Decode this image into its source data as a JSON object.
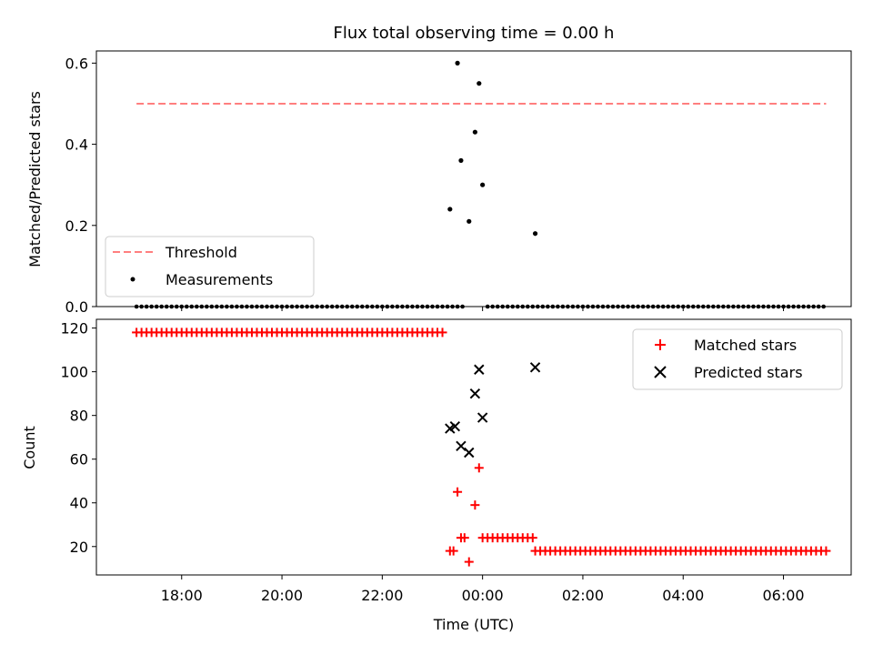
{
  "chart_data": [
    {
      "type": "scatter",
      "title": "Flux total observing time = 0.00 h",
      "xlabel": "",
      "ylabel": "Matched/Predicted stars",
      "ylim": [
        0,
        0.63
      ],
      "yticks": [
        0.0,
        0.2,
        0.4,
        0.6
      ],
      "ytick_labels": [
        "0.0",
        "0.2",
        "0.4",
        "0.6"
      ],
      "x_unit": "hours since 00:00 UTC",
      "xlim": [
        -7.7,
        7.35
      ],
      "threshold": {
        "name": "Threshold",
        "value": 0.5,
        "x_range": [
          -6.9,
          6.85
        ],
        "color": "#ff7f7f"
      },
      "legend": {
        "position": "lower-left",
        "entries": [
          "Threshold",
          "Measurements"
        ]
      },
      "measurements": {
        "name": "Measurements",
        "color": "#000000",
        "zero_ranges": [
          [
            -6.9,
            -0.7
          ],
          [
            -0.6,
            -0.35
          ],
          [
            0.1,
            6.85
          ]
        ],
        "zero_step": 0.1,
        "points": [
          {
            "x": -0.65,
            "y": 0.24
          },
          {
            "x": -0.5,
            "y": 0.6
          },
          {
            "x": -0.43,
            "y": 0.36
          },
          {
            "x": -0.27,
            "y": 0.21
          },
          {
            "x": -0.15,
            "y": 0.43
          },
          {
            "x": -0.07,
            "y": 0.55
          },
          {
            "x": 0.0,
            "y": 0.3
          },
          {
            "x": 1.05,
            "y": 0.18
          }
        ]
      }
    },
    {
      "type": "scatter",
      "title": "",
      "xlabel": "Time (UTC)",
      "ylabel": "Count",
      "ylim": [
        7,
        124
      ],
      "yticks": [
        20,
        40,
        60,
        80,
        100,
        120
      ],
      "ytick_labels": [
        "20",
        "40",
        "60",
        "80",
        "100",
        "120"
      ],
      "xlim": [
        -7.7,
        7.35
      ],
      "xticks": [
        -6,
        -4,
        -2,
        0,
        2,
        4,
        6
      ],
      "xtick_labels": [
        "18:00",
        "20:00",
        "22:00",
        "00:00",
        "02:00",
        "04:00",
        "06:00"
      ],
      "legend": {
        "position": "top-right",
        "entries": [
          "Matched stars",
          "Predicted stars"
        ]
      },
      "series": [
        {
          "name": "Matched stars",
          "marker": "+",
          "color": "#ff0000",
          "runs": [
            {
              "x_range": [
                -6.9,
                -0.8
              ],
              "y": 118
            },
            {
              "x_range": [
                0.0,
                1.0
              ],
              "y": 24
            },
            {
              "x_range": [
                1.05,
                6.85
              ],
              "y": 18
            }
          ],
          "run_step": 0.1,
          "points": [
            {
              "x": -0.65,
              "y": 18
            },
            {
              "x": -0.58,
              "y": 18
            },
            {
              "x": -0.5,
              "y": 45
            },
            {
              "x": -0.43,
              "y": 24
            },
            {
              "x": -0.36,
              "y": 24
            },
            {
              "x": -0.27,
              "y": 13
            },
            {
              "x": -0.15,
              "y": 39
            },
            {
              "x": -0.07,
              "y": 56
            }
          ]
        },
        {
          "name": "Predicted stars",
          "marker": "x",
          "color": "#000000",
          "points": [
            {
              "x": -0.65,
              "y": 74
            },
            {
              "x": -0.55,
              "y": 75
            },
            {
              "x": -0.43,
              "y": 66
            },
            {
              "x": -0.27,
              "y": 63
            },
            {
              "x": -0.15,
              "y": 90
            },
            {
              "x": -0.07,
              "y": 101
            },
            {
              "x": 0.0,
              "y": 79
            },
            {
              "x": 1.05,
              "y": 102
            }
          ]
        }
      ]
    }
  ]
}
